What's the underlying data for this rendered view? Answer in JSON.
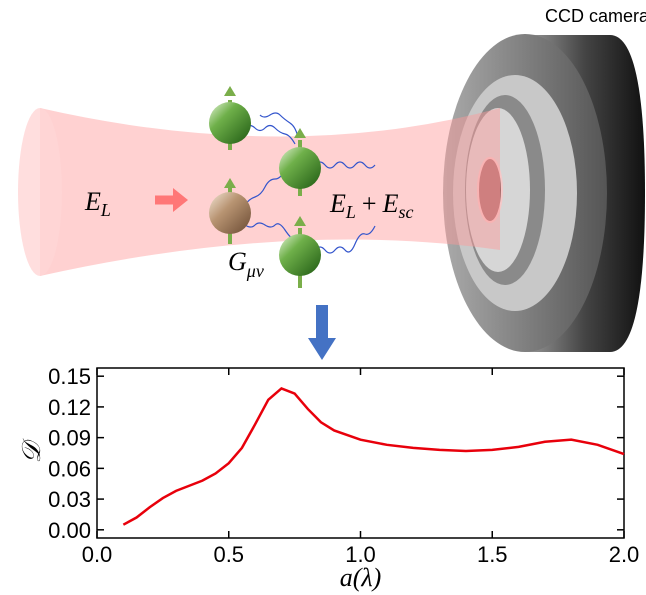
{
  "diagram": {
    "camera_label": "CCD camera",
    "incident_field": {
      "symbol": "E",
      "sub": "L"
    },
    "total_field": {
      "symbol": "E",
      "sub": "L",
      "plus": "+",
      "symbol2": "E",
      "sub2": "sc"
    },
    "green_function": {
      "symbol": "G",
      "sub": "μν"
    }
  },
  "chart_data": {
    "type": "line",
    "xlabel": "a(λ)",
    "ylabel": "𝒟",
    "x": [
      0.1,
      0.15,
      0.2,
      0.25,
      0.3,
      0.35,
      0.4,
      0.45,
      0.5,
      0.55,
      0.6,
      0.65,
      0.7,
      0.75,
      0.8,
      0.85,
      0.9,
      1.0,
      1.1,
      1.2,
      1.3,
      1.4,
      1.5,
      1.6,
      1.7,
      1.8,
      1.9,
      2.0
    ],
    "series": [
      {
        "color": "#e8000b",
        "values": [
          0.005,
          0.012,
          0.022,
          0.031,
          0.038,
          0.043,
          0.048,
          0.055,
          0.065,
          0.08,
          0.103,
          0.127,
          0.138,
          0.133,
          0.118,
          0.105,
          0.097,
          0.088,
          0.083,
          0.08,
          0.078,
          0.077,
          0.078,
          0.081,
          0.086,
          0.088,
          0.083,
          0.074
        ]
      }
    ],
    "xlim": [
      0,
      2
    ],
    "ylim": [
      -0.008,
      0.158
    ],
    "xticks": [
      {
        "value": 0,
        "label": "0.0"
      },
      {
        "value": 0.5,
        "label": "0.5"
      },
      {
        "value": 1,
        "label": "1.0"
      },
      {
        "value": 1.5,
        "label": "1.5"
      },
      {
        "value": 2,
        "label": "2.0"
      }
    ],
    "yticks": [
      {
        "value": 0,
        "label": "0.00"
      },
      {
        "value": 0.03,
        "label": "0.03"
      },
      {
        "value": 0.06,
        "label": "0.06"
      },
      {
        "value": 0.09,
        "label": "0.09"
      },
      {
        "value": 0.12,
        "label": "0.12"
      },
      {
        "value": 0.15,
        "label": "0.15"
      }
    ]
  }
}
